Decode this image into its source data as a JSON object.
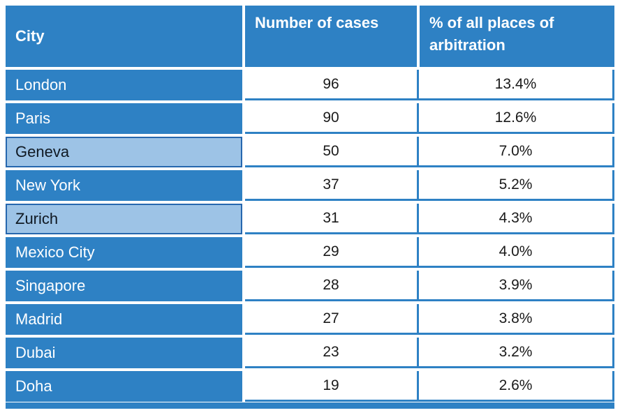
{
  "table": {
    "columns": [
      {
        "label": "City"
      },
      {
        "label": "Number of cases"
      },
      {
        "label": "% of all places of arbitration"
      }
    ],
    "rows": [
      {
        "city": "London",
        "cases": "96",
        "percent": "13.4%",
        "highlight": false
      },
      {
        "city": "Paris",
        "cases": "90",
        "percent": "12.6%",
        "highlight": false
      },
      {
        "city": "Geneva",
        "cases": "50",
        "percent": "7.0%",
        "highlight": true
      },
      {
        "city": "New York",
        "cases": "37",
        "percent": "5.2%",
        "highlight": false
      },
      {
        "city": "Zurich",
        "cases": "31",
        "percent": "4.3%",
        "highlight": true
      },
      {
        "city": "Mexico City",
        "cases": "29",
        "percent": "4.0%",
        "highlight": false
      },
      {
        "city": "Singapore",
        "cases": "28",
        "percent": "3.9%",
        "highlight": false
      },
      {
        "city": "Madrid",
        "cases": "27",
        "percent": "3.8%",
        "highlight": false
      },
      {
        "city": "Dubai",
        "cases": "23",
        "percent": "3.2%",
        "highlight": false
      },
      {
        "city": "Doha",
        "cases": "19",
        "percent": "2.6%",
        "highlight": false
      }
    ]
  },
  "colors": {
    "primary_blue": "#2E81C4",
    "highlight_light_blue": "#9DC3E6",
    "highlight_border_blue": "#2667AE",
    "header_text": "#FFFFFF",
    "data_text": "#1A1A1A"
  },
  "chart_data": {
    "type": "table",
    "title": "",
    "columns": [
      "City",
      "Number of cases",
      "% of all places of arbitration"
    ],
    "rows": [
      [
        "London",
        96,
        "13.4%"
      ],
      [
        "Paris",
        90,
        "12.6%"
      ],
      [
        "Geneva",
        50,
        "7.0%"
      ],
      [
        "New York",
        37,
        "5.2%"
      ],
      [
        "Zurich",
        31,
        "4.3%"
      ],
      [
        "Mexico City",
        29,
        "4.0%"
      ],
      [
        "Singapore",
        28,
        "3.9%"
      ],
      [
        "Madrid",
        27,
        "3.8%"
      ],
      [
        "Dubai",
        23,
        "3.2%"
      ],
      [
        "Doha",
        19,
        "2.6%"
      ]
    ],
    "highlighted_rows": [
      "Geneva",
      "Zurich"
    ]
  }
}
